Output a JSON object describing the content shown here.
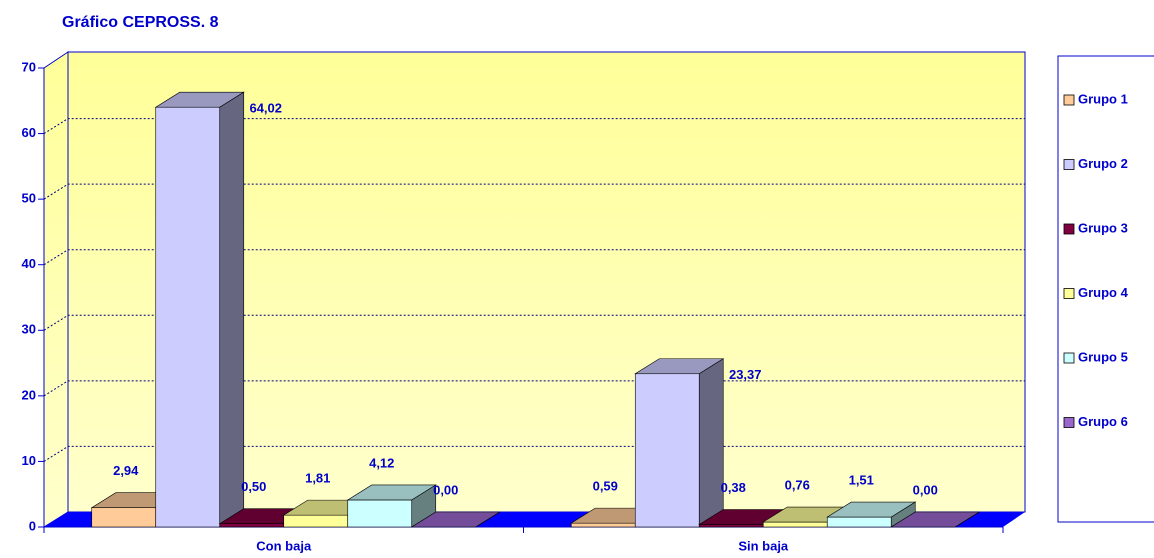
{
  "chart_data": {
    "type": "bar3d",
    "title": "Gráfico CEPROSS. 8",
    "categories": [
      "Con baja",
      "Sin baja"
    ],
    "series": [
      {
        "name": "Grupo 1",
        "color": "#ffcc99",
        "values": [
          2.94,
          0.59
        ],
        "value_labels": [
          "2,94",
          "0,59"
        ]
      },
      {
        "name": "Grupo 2",
        "color": "#ccccff",
        "values": [
          64.02,
          23.37
        ],
        "value_labels": [
          "64,02",
          "23,37"
        ]
      },
      {
        "name": "Grupo 3",
        "color": "#800040",
        "values": [
          0.5,
          0.38
        ],
        "value_labels": [
          "0,50",
          "0,38"
        ]
      },
      {
        "name": "Grupo 4",
        "color": "#ffff99",
        "values": [
          1.81,
          0.76
        ],
        "value_labels": [
          "1,81",
          "0,76"
        ]
      },
      {
        "name": "Grupo 5",
        "color": "#ccffff",
        "values": [
          4.12,
          1.51
        ],
        "value_labels": [
          "4,12",
          "1,51"
        ]
      },
      {
        "name": "Grupo 6",
        "color": "#9966cc",
        "values": [
          0.0,
          0.0
        ],
        "value_labels": [
          "0,00",
          "0,00"
        ]
      }
    ],
    "ylim": [
      0,
      70
    ],
    "yticks": [
      0,
      10,
      20,
      30,
      40,
      50,
      60,
      70
    ],
    "grid": true,
    "legend": "right"
  }
}
